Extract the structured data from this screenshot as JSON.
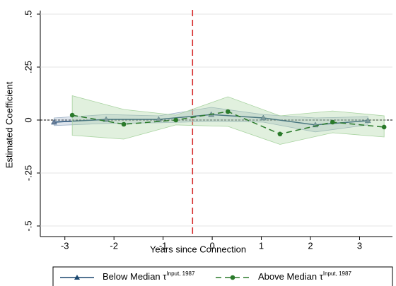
{
  "chart_data": {
    "type": "line",
    "xlabel": "Years since Connection",
    "ylabel": "Estimated Coefficient",
    "xlim": [
      -3.5,
      3.67
    ],
    "ylim": [
      -0.55,
      0.5
    ],
    "xticks": [
      -3,
      -2,
      -1,
      0,
      1,
      2,
      3
    ],
    "yticks": [
      {
        "value": -0.5,
        "label": "-.5"
      },
      {
        "value": -0.25,
        "label": "-.25"
      },
      0,
      {
        "value": 0.25,
        "label": ".25"
      },
      {
        "value": 0.5,
        "label": ".5"
      }
    ],
    "event_line": -0.4,
    "event_color": "#d62728",
    "series": [
      {
        "name": "Below Median τ",
        "name_sup": "Input, 1987",
        "color": "#1a476f",
        "band_color": "#9fb3c8",
        "x": [
          -3.22,
          -2.16,
          -1.09,
          -0.02,
          1.04,
          2.1,
          3.17
        ],
        "values": [
          -0.01,
          0.003,
          0.003,
          0.026,
          0.01,
          -0.023,
          -0.003
        ],
        "ci_upper": [
          0.01,
          0.026,
          0.02,
          0.06,
          0.026,
          0.01,
          0.016
        ],
        "ci_lower": [
          -0.026,
          -0.016,
          -0.013,
          -0.006,
          -0.01,
          -0.056,
          -0.023
        ]
      },
      {
        "name": "Above Median τ",
        "name_sup": "Input, 1987",
        "color": "#2a7a2a",
        "band_color": "#a8d3a0",
        "x": [
          -2.85,
          -1.8,
          -0.74,
          0.32,
          1.38,
          2.45,
          3.5
        ],
        "values": [
          0.023,
          -0.02,
          0,
          0.04,
          -0.066,
          -0.01,
          -0.033
        ],
        "ci_upper": [
          0.115,
          0.05,
          0.023,
          0.11,
          0.02,
          0.043,
          0.02
        ],
        "ci_lower": [
          -0.072,
          -0.09,
          -0.023,
          -0.03,
          -0.115,
          -0.06,
          -0.08
        ]
      }
    ]
  }
}
